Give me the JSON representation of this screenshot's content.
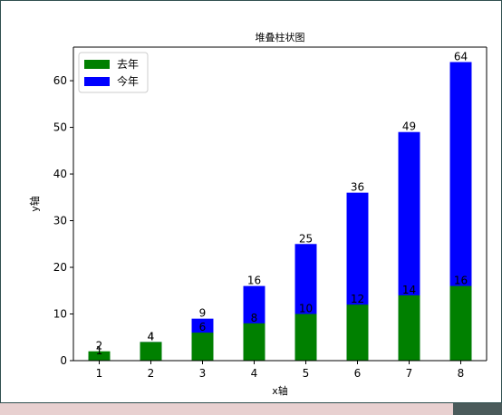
{
  "chart_data": {
    "type": "bar",
    "title": "堆叠柱状图",
    "x_label": "x轴",
    "y_label": "y轴",
    "x": [
      1,
      2,
      3,
      4,
      5,
      6,
      7,
      8
    ],
    "series": [
      {
        "name": "去年",
        "color": "#008000",
        "values": [
          2,
          4,
          6,
          8,
          10,
          12,
          14,
          16
        ]
      },
      {
        "name": "今年",
        "color": "#0000ff",
        "values": [
          1,
          4,
          9,
          16,
          25,
          36,
          49,
          64
        ]
      }
    ],
    "xlim": [
      0.5,
      8.5
    ],
    "xticks": [
      1,
      2,
      3,
      4,
      5,
      6,
      7,
      8
    ],
    "ylim": [
      0,
      67.2
    ],
    "yticks": [
      0,
      10,
      20,
      30,
      40,
      50,
      60
    ],
    "legend": "upper left"
  }
}
